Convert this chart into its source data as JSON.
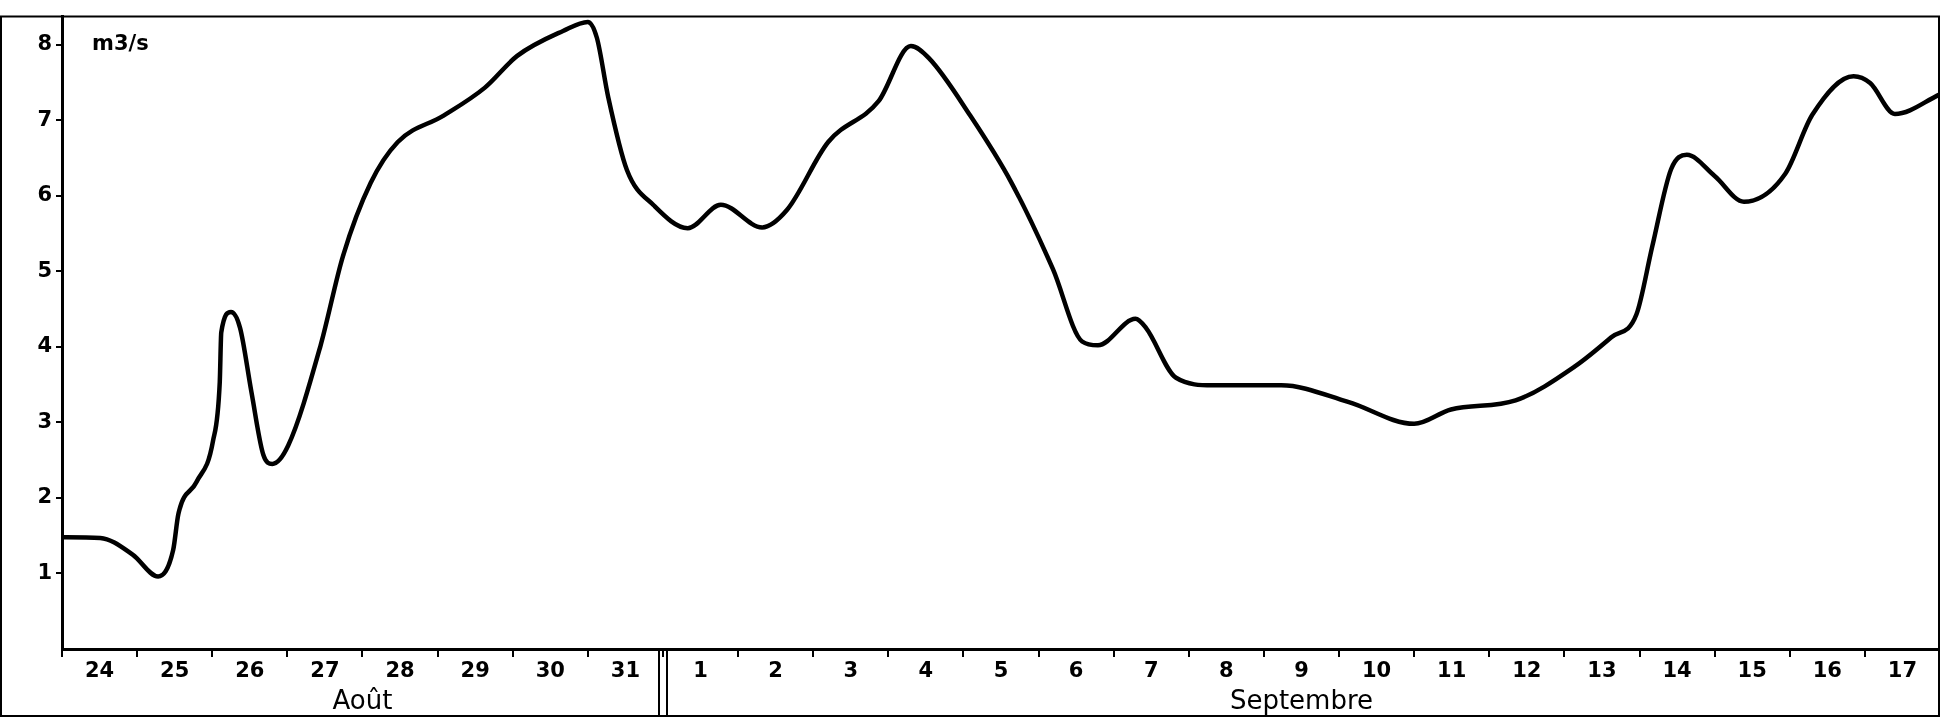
{
  "chart_data": {
    "type": "line",
    "ylabel": "m3/s",
    "annotations": [
      "Août",
      "Septembre"
    ],
    "x": [
      "--08-24T00:00",
      "--08-24T12:14",
      "--08-24T22:34",
      "--08-25T06:43",
      "--08-25T11:31",
      "--08-25T13:12",
      "--08-25T18:58",
      "--08-26T00:14",
      "--08-26T02:24",
      "--08-26T02:53",
      "--08-26T06:00",
      "--08-26T08:53",
      "--08-26T12:29",
      "--08-26T16:19",
      "--08-26T19:12",
      "--08-27T00:14",
      "--08-27T10:34",
      "--08-27T17:46",
      "--08-28T02:38",
      "--08-28T11:17",
      "--08-29T01:55",
      "--08-29T15:07",
      "--08-30T01:26",
      "--08-30T16:05",
      "--08-31T00:00",
      "--08-31T02:53",
      "--08-31T06:29",
      "--08-31T12:29",
      "--08-31T21:07",
      "--09-01T07:55",
      "--09-01T18:29",
      "--09-02T07:41",
      "--09-02T15:36",
      "--09-03T04:48",
      "--09-03T20:53",
      "--09-04T07:12",
      "--09-04T12:58",
      "--09-05T02:10",
      "--09-05T15:22",
      "--09-06T04:34",
      "--09-06T13:55",
      "--09-06T18:58",
      "--09-07T06:58",
      "--09-07T10:19",
      "--09-07T19:55",
      "--09-08T07:41",
      "--09-09T05:31",
      "--09-10T02:53",
      "--09-11T00:00",
      "--09-11T11:46",
      "--09-12T08:24",
      "--09-13T03:22",
      "--09-13T15:07",
      "--09-13T23:02",
      "--09-14T04:05",
      "--09-14T10:05",
      "--09-14T15:07",
      "--09-15T00:00",
      "--09-15T09:22",
      "--09-15T22:34",
      "--09-16T07:12",
      "--09-16T20:24",
      "--09-17T01:41",
      "--09-17T09:36",
      "--09-18T00:00"
    ],
    "series": [
      {
        "color": "#000000",
        "values": [
          1.48,
          1.47,
          1.25,
          0.96,
          1.31,
          1.79,
          2.21,
          2.75,
          3.53,
          4.19,
          4.46,
          4.25,
          3.41,
          2.57,
          2.45,
          2.69,
          4.01,
          5.2,
          6.17,
          6.71,
          7.06,
          7.43,
          7.85,
          8.18,
          8.3,
          8.09,
          7.31,
          6.34,
          5.87,
          5.57,
          5.88,
          5.58,
          5.81,
          6.71,
          7.25,
          7.98,
          7.82,
          7.06,
          6.17,
          5.03,
          4.07,
          4.02,
          4.37,
          4.25,
          3.59,
          3.49,
          3.49,
          3.27,
          2.98,
          3.17,
          3.29,
          3.74,
          4.13,
          4.43,
          5.33,
          6.35,
          6.54,
          6.26,
          5.92,
          6.29,
          7.07,
          7.58,
          7.49,
          7.08,
          7.34
        ]
      }
    ],
    "xlim": [
      "--08-24",
      "--09-18"
    ],
    "xticks": [
      {
        "value": "--08-24",
        "label": null
      },
      {
        "value": "--08-24T12:00",
        "label": "24"
      },
      {
        "value": "--08-25",
        "label": null
      },
      {
        "value": "--08-25T12:00",
        "label": "25"
      },
      {
        "value": "--08-26",
        "label": null
      },
      {
        "value": "--08-26T12:00",
        "label": "26"
      },
      {
        "value": "--08-27",
        "label": null
      },
      {
        "value": "--08-27T12:00",
        "label": "27"
      },
      {
        "value": "--08-28",
        "label": null
      },
      {
        "value": "--08-28T12:00",
        "label": "28"
      },
      {
        "value": "--08-29",
        "label": null
      },
      {
        "value": "--08-29T12:00",
        "label": "29"
      },
      {
        "value": "--08-30",
        "label": null
      },
      {
        "value": "--08-30T12:00",
        "label": "30"
      },
      {
        "value": "--08-31",
        "label": null
      },
      {
        "value": "--08-31T12:00",
        "label": "31"
      },
      {
        "value": "--09-01",
        "label": null
      },
      {
        "value": "--09-01T12:00",
        "label": "1"
      },
      {
        "value": "--09-02",
        "label": null
      },
      {
        "value": "--09-02T12:00",
        "label": "2"
      },
      {
        "value": "--09-03",
        "label": null
      },
      {
        "value": "--09-03T12:00",
        "label": "3"
      },
      {
        "value": "--09-04",
        "label": null
      },
      {
        "value": "--09-04T12:00",
        "label": "4"
      },
      {
        "value": "--09-05",
        "label": null
      },
      {
        "value": "--09-05T12:00",
        "label": "5"
      },
      {
        "value": "--09-06",
        "label": null
      },
      {
        "value": "--09-06T12:00",
        "label": "6"
      },
      {
        "value": "--09-07",
        "label": null
      },
      {
        "value": "--09-07T12:00",
        "label": "7"
      },
      {
        "value": "--09-08",
        "label": null
      },
      {
        "value": "--09-08T12:00",
        "label": "8"
      },
      {
        "value": "--09-09",
        "label": null
      },
      {
        "value": "--09-09T12:00",
        "label": "9"
      },
      {
        "value": "--09-10",
        "label": null
      },
      {
        "value": "--09-10T12:00",
        "label": "10"
      },
      {
        "value": "--09-11",
        "label": null
      },
      {
        "value": "--09-11T12:00",
        "label": "11"
      },
      {
        "value": "--09-12",
        "label": null
      },
      {
        "value": "--09-12T12:00",
        "label": "12"
      },
      {
        "value": "--09-13",
        "label": null
      },
      {
        "value": "--09-13T12:00",
        "label": "13"
      },
      {
        "value": "--09-14",
        "label": null
      },
      {
        "value": "--09-14T12:00",
        "label": "14"
      },
      {
        "value": "--09-15",
        "label": null
      },
      {
        "value": "--09-15T12:00",
        "label": "15"
      },
      {
        "value": "--09-16",
        "label": null
      },
      {
        "value": "--09-16T12:00",
        "label": "16"
      },
      {
        "value": "--09-17",
        "label": null
      },
      {
        "value": "--09-17T12:00",
        "label": "17"
      }
    ],
    "ylim": [
      0,
      8.37
    ],
    "yticks": [
      1,
      2,
      3,
      4,
      5,
      6,
      7,
      8
    ],
    "grid": false,
    "legend": false,
    "marker": "none",
    "line_style": "solid"
  }
}
